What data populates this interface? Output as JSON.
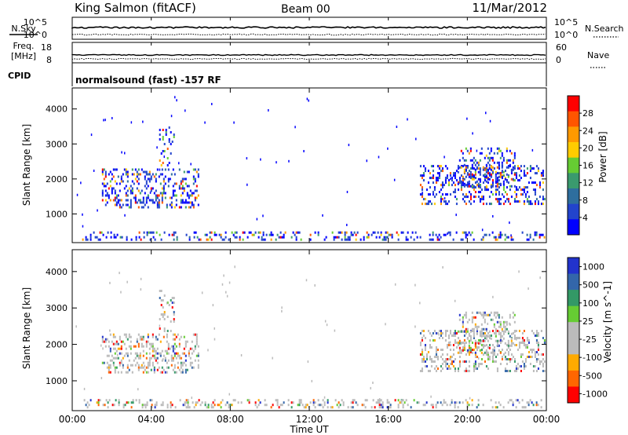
{
  "header": {
    "station": "King Salmon (fitACF)",
    "beam": "Beam 00",
    "date": "11/Mar/2012"
  },
  "strip": {
    "nsky_label": "N.Sky",
    "nsearch_label": "N.Search",
    "tick_10e5": "10^5",
    "tick_10e0": "10^0",
    "freq_label_1": "Freq.",
    "freq_label_2": "[MHz]",
    "freq_ticks": [
      "18",
      "8"
    ],
    "nave_label": "Nave",
    "nave_ticks": [
      "60",
      "0"
    ],
    "cpid_label": "CPID",
    "cpid_value": "normalsound (fast) -157 RF"
  },
  "time_axis": {
    "xlabel": "Time UT",
    "ticks": [
      "00:00",
      "04:00",
      "08:00",
      "12:00",
      "16:00",
      "20:00",
      "00:00"
    ]
  },
  "colors": {
    "power": [
      "#0000ff",
      "#2244cc",
      "#2e6e9e",
      "#3a9a6e",
      "#66cc33",
      "#ffcc00",
      "#ff9900",
      "#ff5500",
      "#ff0000"
    ],
    "velocity": [
      "#2233cc",
      "#3366aa",
      "#339966",
      "#66cc33",
      "#bbbbbb",
      "#bbbbbb",
      "#ffaa00",
      "#ff6600",
      "#ff0000"
    ]
  },
  "chart_data": [
    {
      "type": "heatmap",
      "title": "Power",
      "xlabel": "Time UT",
      "ylabel": "Slant Range [km]",
      "xlim": [
        0,
        24
      ],
      "ylim": [
        180,
        4600
      ],
      "yticks": [
        1000,
        2000,
        3000,
        4000
      ],
      "colorbar": {
        "label": "Power [dB]",
        "ticks": [
          "4",
          "8",
          "12",
          "16",
          "20",
          "24",
          "28"
        ],
        "range": [
          0,
          30
        ]
      },
      "regions": [
        {
          "t0": 1.5,
          "t1": 6.5,
          "r0": 1150,
          "r1": 2300,
          "density": 0.55
        },
        {
          "t0": 4.4,
          "t1": 5.2,
          "r0": 2300,
          "r1": 3500,
          "density": 0.35
        },
        {
          "t0": 17.6,
          "t1": 24,
          "r0": 1200,
          "r1": 2400,
          "density": 0.55
        },
        {
          "t0": 19.5,
          "t1": 22.5,
          "r0": 1700,
          "r1": 2900,
          "density": 0.5
        },
        {
          "t0": 0.5,
          "t1": 24,
          "r0": 180,
          "r1": 500,
          "density": 0.45
        }
      ]
    },
    {
      "type": "heatmap",
      "title": "Velocity",
      "xlabel": "Time UT",
      "ylabel": "Slant Range [km]",
      "xlim": [
        0,
        24
      ],
      "ylim": [
        180,
        4600
      ],
      "yticks": [
        1000,
        2000,
        3000,
        4000
      ],
      "colorbar": {
        "label": "Velocity [m s^-1]",
        "ticks": [
          "1000",
          "500",
          "100",
          "25",
          "-25",
          "-100",
          "-500",
          "-1000"
        ],
        "range": [
          -1000,
          1000
        ]
      },
      "regions": [
        {
          "t0": 1.5,
          "t1": 6.5,
          "r0": 1150,
          "r1": 2300,
          "density": 0.55
        },
        {
          "t0": 4.4,
          "t1": 5.2,
          "r0": 2300,
          "r1": 3500,
          "density": 0.35
        },
        {
          "t0": 17.6,
          "t1": 24,
          "r0": 1200,
          "r1": 2400,
          "density": 0.55
        },
        {
          "t0": 19.5,
          "t1": 22.5,
          "r0": 1700,
          "r1": 2900,
          "density": 0.5
        },
        {
          "t0": 0.5,
          "t1": 24,
          "r0": 180,
          "r1": 500,
          "density": 0.45
        }
      ]
    }
  ]
}
